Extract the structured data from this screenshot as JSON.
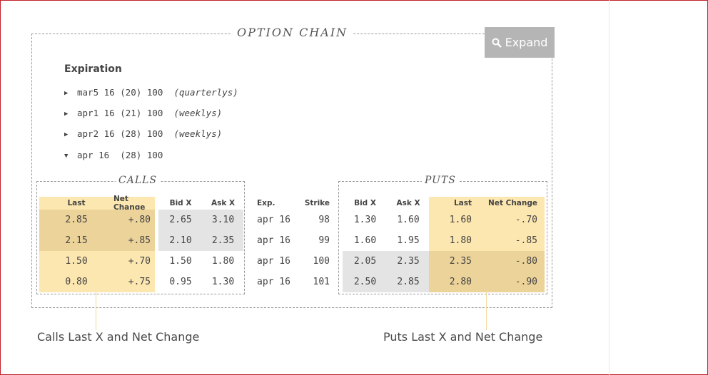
{
  "title": "OPTION CHAIN",
  "expand_label": "Expand",
  "expiration": {
    "heading": "Expiration",
    "items": [
      {
        "marker": "▶",
        "text": "mar5 16 (20) 100  ",
        "note": "(quarterlys)"
      },
      {
        "marker": "▶",
        "text": "apr1 16 (21) 100  ",
        "note": "(weeklys)"
      },
      {
        "marker": "▶",
        "text": "apr2 16 (28) 100  ",
        "note": "(weeklys)"
      },
      {
        "marker": "▼",
        "text": "apr 16  (28) 100",
        "note": ""
      }
    ]
  },
  "calls_label": "CALLS",
  "puts_label": "PUTS",
  "headers": {
    "calls": [
      "Last",
      "Net Change",
      "Bid X",
      "Ask X"
    ],
    "middle": [
      "Exp.",
      "Strike"
    ],
    "puts": [
      "Bid X",
      "Ask X",
      "Last",
      "Net Change"
    ]
  },
  "rows": [
    {
      "calls": [
        "2.85",
        "+.80",
        "2.65",
        "3.10"
      ],
      "exp": "apr 16",
      "strike": "98",
      "puts": [
        "1.30",
        "1.60",
        "1.60",
        "-.70"
      ]
    },
    {
      "calls": [
        "2.15",
        "+.85",
        "2.10",
        "2.35"
      ],
      "exp": "apr 16",
      "strike": "99",
      "puts": [
        "1.60",
        "1.95",
        "1.80",
        "-.85"
      ]
    },
    {
      "calls": [
        "1.50",
        "+.70",
        "1.50",
        "1.80"
      ],
      "exp": "apr 16",
      "strike": "100",
      "puts": [
        "2.05",
        "2.35",
        "2.35",
        "-.80"
      ]
    },
    {
      "calls": [
        "0.80",
        "+.75",
        "0.95",
        "1.30"
      ],
      "exp": "apr 16",
      "strike": "101",
      "puts": [
        "2.50",
        "2.85",
        "2.80",
        "-.90"
      ]
    }
  ],
  "callouts": {
    "calls": "Calls Last X and Net Change",
    "puts": "Puts Last X and Net Change"
  },
  "colors": {
    "highlight": "#fde7b0",
    "highlight_itm": "#ecd39a",
    "itm_grey": "#e4e4e4",
    "expand_button": "#b5b5b5",
    "frame_border": "#c0222a"
  }
}
